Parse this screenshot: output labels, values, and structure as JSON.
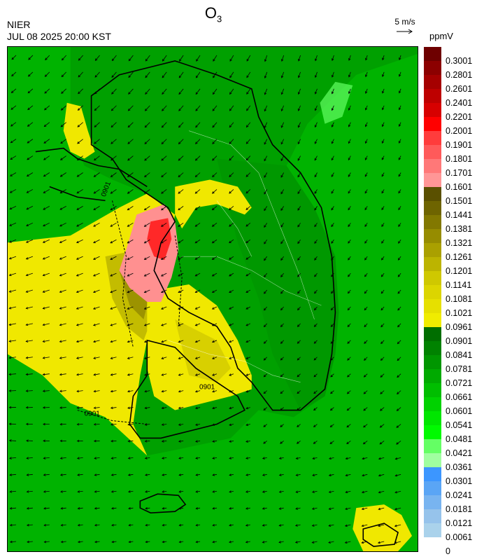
{
  "header": {
    "title_main": "O",
    "title_sub": "3",
    "agency": "NIER",
    "datetime": "JUL 08 2025 20:00 KST",
    "vector_reference": "5 m/s",
    "unit": "ppmV"
  },
  "legend": {
    "levels": [
      "0.3001",
      "0.2801",
      "0.2601",
      "0.2401",
      "0.2201",
      "0.2001",
      "0.1901",
      "0.1801",
      "0.1701",
      "0.1601",
      "0.1501",
      "0.1441",
      "0.1381",
      "0.1321",
      "0.1261",
      "0.1201",
      "0.1141",
      "0.1081",
      "0.1021",
      "0.0961",
      "0.0901",
      "0.0841",
      "0.0781",
      "0.0721",
      "0.0661",
      "0.0601",
      "0.0541",
      "0.0481",
      "0.0421",
      "0.0361",
      "0.0301",
      "0.0241",
      "0.0181",
      "0.0121",
      "0.0061",
      "0"
    ],
    "colors": [
      "#6e0000",
      "#8c0000",
      "#a50000",
      "#be0000",
      "#d70000",
      "#ff0000",
      "#ff3c3c",
      "#ff5a5a",
      "#ff7878",
      "#ff9696",
      "#5a5000",
      "#6e6400",
      "#827800",
      "#968c00",
      "#aaa000",
      "#bcb400",
      "#cfc800",
      "#dcd500",
      "#e6e000",
      "#f0ec00",
      "#006e00",
      "#008200",
      "#009600",
      "#00aa00",
      "#00be00",
      "#00d200",
      "#00e600",
      "#00fa00",
      "#64ff64",
      "#a0ffa0",
      "#3c96ff",
      "#5aa5f5",
      "#78b4f0",
      "#96c3eb",
      "#aad2eb"
    ]
  },
  "map": {
    "contour_label": "0901",
    "palette": {
      "sea": "#00b300",
      "land": "#00a000",
      "high": "#f0e800",
      "peak": "#ff9090",
      "core": "#ff2828"
    }
  }
}
